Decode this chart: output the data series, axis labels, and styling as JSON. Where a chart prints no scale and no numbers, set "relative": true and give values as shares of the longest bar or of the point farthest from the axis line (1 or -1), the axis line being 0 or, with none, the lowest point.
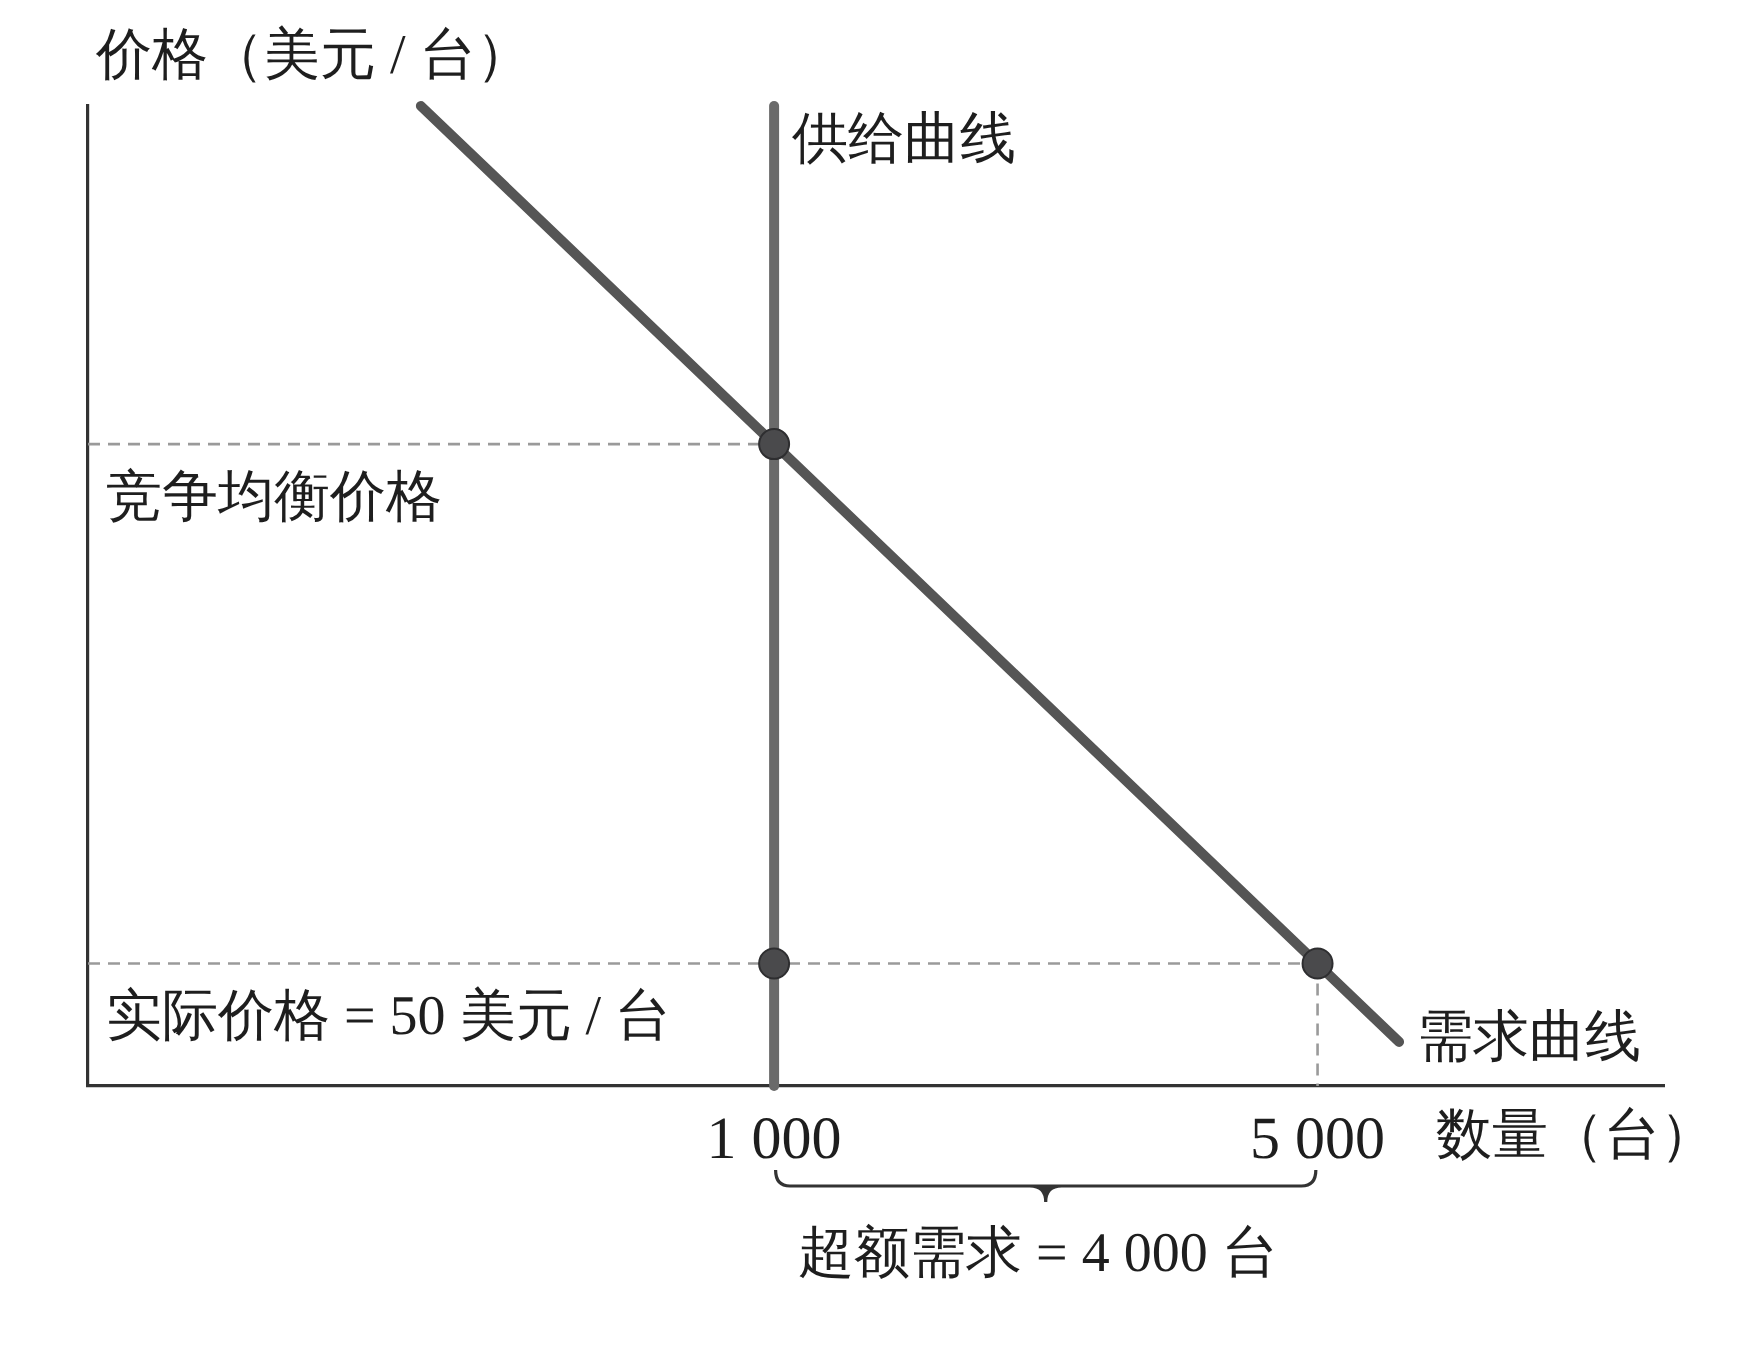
{
  "chart_data": {
    "type": "line",
    "xlabel": "数量（台）",
    "ylabel": "价格（美元 / 台）",
    "relative": true,
    "xlim": [
      -4050,
      7550
    ],
    "xticks": [
      {
        "value": 1000,
        "label": "1 000"
      },
      {
        "value": 5000,
        "label": "5 000"
      }
    ],
    "grid": false,
    "legend": false,
    "series": [
      {
        "name": "需求曲线",
        "type": "line",
        "color": "#555555",
        "x": [
          -1600,
          5600
        ],
        "values": [
          1,
          0.045
        ]
      },
      {
        "name": "供给曲线",
        "type": "line",
        "color": "#6a6a6a",
        "x": [
          1000,
          1000
        ],
        "values": [
          0,
          1
        ]
      },
      {
        "type": "line",
        "color": "#9a9a9a",
        "line_style": "dashed",
        "x": [
          -4050,
          1000
        ],
        "values": [
          0.655,
          0.655
        ]
      },
      {
        "type": "line",
        "color": "#9a9a9a",
        "line_style": "dashed",
        "x": [
          -4050,
          5000
        ],
        "values": [
          0.125,
          0.125
        ]
      },
      {
        "type": "line",
        "color": "#9a9a9a",
        "line_style": "dashed",
        "x": [
          5000,
          5000
        ],
        "values": [
          0.125,
          0
        ]
      },
      {
        "type": "scatter",
        "color": "#4a4a4c",
        "marker": "circle",
        "x": [
          1000,
          1000,
          5000
        ],
        "values": [
          0.655,
          0.125,
          0.125
        ]
      }
    ],
    "annotations": [
      {
        "text": "竞争均衡价格",
        "x": -4050,
        "y": 0.655
      },
      {
        "text": "实际价格 = 50 美元 / 台",
        "x": -4050,
        "y": 0.125
      },
      "超额需求 = 4 000 台"
    ]
  }
}
